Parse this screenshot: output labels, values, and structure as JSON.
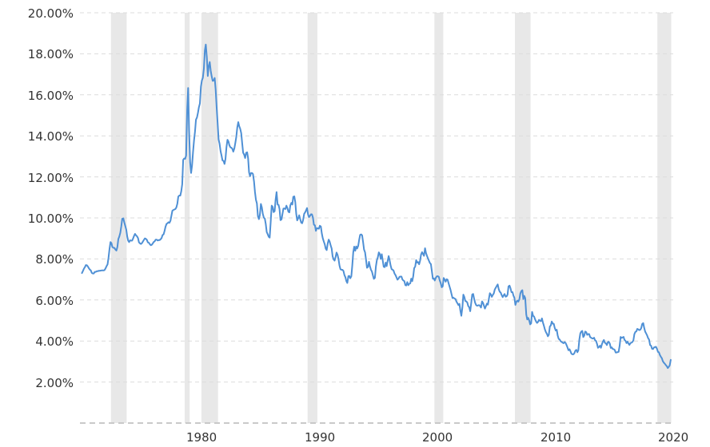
{
  "chart_data": {
    "type": "line",
    "x_axis": {
      "tick_labels": [
        "1980",
        "1990",
        "2000",
        "2010",
        "2020"
      ],
      "tick_years": [
        1980,
        1990,
        2000,
        2010,
        2020
      ],
      "range": [
        1971.12,
        2021.42
      ],
      "gridlines": false
    },
    "y_axis": {
      "tick_labels": [
        "20.00%",
        "18.00%",
        "16.00%",
        "14.00%",
        "12.00%",
        "10.00%",
        "8.00%",
        "6.00%",
        "4.00%",
        "2.00%"
      ],
      "tick_values": [
        20,
        18,
        16,
        14,
        12,
        10,
        8,
        6,
        4,
        2
      ],
      "range": [
        0,
        20
      ],
      "gridlines": "dashed"
    },
    "legend": "none",
    "recession_bands": [
      [
        1973.75,
        1975.08
      ],
      [
        1980.0,
        1980.42
      ],
      [
        1981.42,
        1982.83
      ],
      [
        1990.42,
        1991.25
      ],
      [
        2001.17,
        2001.92
      ],
      [
        2008.0,
        2009.33
      ],
      [
        2020.08,
        2021.25
      ]
    ],
    "colors": {
      "line": "#4f90d5",
      "band": "#e8e8e8",
      "gridline": "#dcdcdc",
      "axis_line": "#c9c9c9",
      "text": "#333333",
      "background": "#ffffff"
    },
    "series": {
      "start_year": 1971,
      "start_month": 4,
      "unit": "percent",
      "monthly_values_by_year": {
        "1971": [
          7.31,
          7.42,
          7.53,
          7.6,
          7.7,
          7.69,
          7.63,
          7.55,
          7.48
        ],
        "1972": [
          7.44,
          7.32,
          7.29,
          7.29,
          7.37,
          7.37,
          7.4,
          7.4,
          7.42,
          7.42,
          7.43,
          7.44
        ],
        "1973": [
          7.44,
          7.44,
          7.46,
          7.54,
          7.65,
          7.73,
          8.05,
          8.5,
          8.82,
          8.77,
          8.58,
          8.54
        ],
        "1974": [
          8.54,
          8.46,
          8.41,
          8.58,
          8.97,
          9.09,
          9.28,
          9.59,
          9.96,
          9.98,
          9.79,
          9.62
        ],
        "1975": [
          9.43,
          9.1,
          8.89,
          8.82,
          8.91,
          8.89,
          8.89,
          9.0,
          9.13,
          9.22,
          9.15,
          9.1
        ],
        "1976": [
          9.02,
          8.81,
          8.76,
          8.73,
          8.77,
          8.85,
          8.93,
          9.0,
          8.98,
          8.93,
          8.81,
          8.79
        ],
        "1977": [
          8.72,
          8.67,
          8.69,
          8.75,
          8.83,
          8.86,
          8.94,
          8.94,
          8.9,
          8.92,
          8.92,
          8.96
        ],
        "1978": [
          9.02,
          9.16,
          9.2,
          9.36,
          9.57,
          9.71,
          9.74,
          9.79,
          9.76,
          9.86,
          10.11,
          10.35
        ],
        "1979": [
          10.39,
          10.41,
          10.43,
          10.5,
          10.69,
          11.04,
          11.09,
          11.09,
          11.3,
          11.64,
          12.83,
          12.9
        ],
        "1980": [
          12.88,
          13.04,
          15.28,
          16.33,
          14.26,
          12.71,
          12.19,
          12.56,
          13.2,
          13.79,
          14.21,
          14.79
        ],
        "1981": [
          14.9,
          15.13,
          15.4,
          15.58,
          16.4,
          16.7,
          16.83,
          17.28,
          18.16,
          18.45,
          17.82,
          16.92
        ],
        "1982": [
          17.4,
          17.6,
          17.16,
          16.89,
          16.68,
          16.7,
          16.82,
          16.27,
          15.43,
          14.61,
          13.83,
          13.62
        ],
        "1983": [
          13.25,
          13.04,
          12.8,
          12.78,
          12.63,
          12.87,
          13.43,
          13.81,
          13.73,
          13.54,
          13.44,
          13.42
        ],
        "1984": [
          13.37,
          13.23,
          13.39,
          13.65,
          13.94,
          14.42,
          14.67,
          14.47,
          14.35,
          14.13,
          13.64,
          13.18
        ],
        "1985": [
          13.08,
          12.92,
          13.17,
          13.2,
          12.91,
          12.22,
          12.03,
          12.19,
          12.19,
          12.14,
          11.78,
          11.26
        ],
        "1986": [
          10.88,
          10.71,
          10.08,
          9.94,
          10.14,
          10.68,
          10.51,
          10.2,
          10.01,
          9.97,
          9.7,
          9.31
        ],
        "1987": [
          9.2,
          9.08,
          9.04,
          9.83,
          10.6,
          10.54,
          10.28,
          10.33,
          10.89,
          11.26,
          10.65,
          10.64
        ],
        "1988": [
          10.43,
          9.89,
          9.93,
          10.2,
          10.46,
          10.46,
          10.43,
          10.6,
          10.48,
          10.3,
          10.27,
          10.61
        ],
        "1989": [
          10.73,
          10.65,
          11.03,
          11.05,
          10.77,
          10.2,
          9.88,
          9.99,
          10.13,
          9.95,
          9.77,
          9.74
        ],
        "1990": [
          9.9,
          10.2,
          10.27,
          10.37,
          10.48,
          10.16,
          10.04,
          10.1,
          10.18,
          10.17,
          10.01,
          9.67
        ],
        "1991": [
          9.64,
          9.37,
          9.5,
          9.49,
          9.47,
          9.62,
          9.58,
          9.24,
          9.01,
          8.86,
          8.71,
          8.5
        ],
        "1992": [
          8.43,
          8.76,
          8.94,
          8.85,
          8.67,
          8.51,
          8.13,
          7.98,
          7.92,
          8.09,
          8.31,
          8.21
        ],
        "1993": [
          7.99,
          7.68,
          7.5,
          7.47,
          7.47,
          7.42,
          7.21,
          7.11,
          6.92,
          6.83,
          7.16,
          7.17
        ],
        "1994": [
          7.06,
          7.15,
          7.68,
          8.32,
          8.6,
          8.4,
          8.61,
          8.51,
          8.64,
          8.93,
          9.17,
          9.2
        ],
        "1995": [
          9.15,
          8.83,
          8.46,
          8.32,
          7.96,
          7.57,
          7.61,
          7.86,
          7.64,
          7.48,
          7.38,
          7.2
        ],
        "1996": [
          7.03,
          7.08,
          7.62,
          7.93,
          8.07,
          8.32,
          8.25,
          8.0,
          8.23,
          7.92,
          7.62,
          7.6
        ],
        "1997": [
          7.82,
          7.65,
          7.9,
          8.14,
          7.94,
          7.69,
          7.5,
          7.48,
          7.43,
          7.29,
          7.21,
          7.1
        ],
        "1998": [
          6.99,
          7.04,
          7.13,
          7.14,
          7.14,
          7.0,
          6.95,
          6.92,
          6.72,
          6.71,
          6.87,
          6.72
        ],
        "1999": [
          6.79,
          6.81,
          7.04,
          6.92,
          7.15,
          7.55,
          7.63,
          7.94,
          7.82,
          7.85,
          7.74,
          7.91
        ],
        "2000": [
          8.21,
          8.33,
          8.24,
          8.15,
          8.52,
          8.29,
          8.15,
          8.03,
          7.91,
          7.8,
          7.75,
          7.38
        ],
        "2001": [
          7.03,
          7.05,
          6.95,
          7.08,
          7.15,
          7.16,
          7.13,
          6.95,
          6.82,
          6.62,
          6.66,
          7.07
        ],
        "2002": [
          7.0,
          6.89,
          7.01,
          6.99,
          6.81,
          6.65,
          6.49,
          6.29,
          6.09,
          6.11,
          6.07,
          6.05
        ],
        "2003": [
          5.92,
          5.84,
          5.75,
          5.81,
          5.48,
          5.23,
          5.63,
          6.26,
          6.15,
          5.95,
          5.93,
          5.88
        ],
        "2004": [
          5.71,
          5.64,
          5.45,
          5.83,
          6.27,
          6.29,
          6.06,
          5.87,
          5.75,
          5.72,
          5.73,
          5.75
        ],
        "2005": [
          5.71,
          5.63,
          5.93,
          5.86,
          5.72,
          5.58,
          5.7,
          5.82,
          5.77,
          6.07,
          6.33,
          6.27
        ],
        "2006": [
          6.15,
          6.25,
          6.32,
          6.51,
          6.6,
          6.68,
          6.76,
          6.52,
          6.4,
          6.36,
          6.24,
          6.14
        ],
        "2007": [
          6.22,
          6.29,
          6.16,
          6.18,
          6.26,
          6.66,
          6.7,
          6.57,
          6.38,
          6.38,
          6.21,
          6.1
        ],
        "2008": [
          5.76,
          5.92,
          5.97,
          5.92,
          6.04,
          6.32,
          6.43,
          6.48,
          6.04,
          6.2,
          6.09,
          5.29
        ],
        "2009": [
          5.05,
          5.13,
          5.0,
          4.81,
          4.86,
          5.42,
          5.22,
          5.19,
          5.06,
          4.95,
          4.88,
          4.93
        ],
        "2010": [
          5.03,
          4.99,
          4.97,
          5.1,
          4.89,
          4.74,
          4.56,
          4.43,
          4.35,
          4.23,
          4.3,
          4.71
        ],
        "2011": [
          4.76,
          4.95,
          4.84,
          4.84,
          4.64,
          4.51,
          4.55,
          4.27,
          4.11,
          4.07,
          3.99,
          3.96
        ],
        "2012": [
          3.92,
          3.89,
          3.95,
          3.91,
          3.8,
          3.68,
          3.55,
          3.6,
          3.5,
          3.38,
          3.35,
          3.35
        ],
        "2013": [
          3.41,
          3.53,
          3.57,
          3.45,
          3.54,
          4.07,
          4.37,
          4.46,
          4.49,
          4.19,
          4.26,
          4.46
        ],
        "2014": [
          4.43,
          4.3,
          4.34,
          4.34,
          4.19,
          4.16,
          4.13,
          4.12,
          4.16,
          4.04,
          4.0,
          3.86
        ],
        "2015": [
          3.67,
          3.71,
          3.77,
          3.67,
          3.84,
          3.98,
          4.05,
          3.91,
          3.89,
          3.8,
          3.94,
          3.96
        ],
        "2016": [
          3.87,
          3.66,
          3.69,
          3.61,
          3.6,
          3.57,
          3.44,
          3.44,
          3.46,
          3.47,
          3.77,
          4.2
        ],
        "2017": [
          4.15,
          4.17,
          4.2,
          4.05,
          4.01,
          3.9,
          3.97,
          3.88,
          3.81,
          3.9,
          3.92,
          3.95
        ],
        "2018": [
          4.03,
          4.33,
          4.44,
          4.47,
          4.59,
          4.57,
          4.53,
          4.55,
          4.63,
          4.83,
          4.87,
          4.64
        ],
        "2019": [
          4.46,
          4.37,
          4.27,
          4.14,
          4.07,
          3.8,
          3.77,
          3.62,
          3.61,
          3.69,
          3.7,
          3.72
        ],
        "2020": [
          3.62,
          3.47,
          3.45,
          3.31,
          3.23,
          3.16,
          3.02,
          2.94,
          2.89,
          2.83,
          2.77,
          2.68
        ],
        "2021": [
          2.74,
          2.81,
          3.08
        ]
      }
    }
  }
}
